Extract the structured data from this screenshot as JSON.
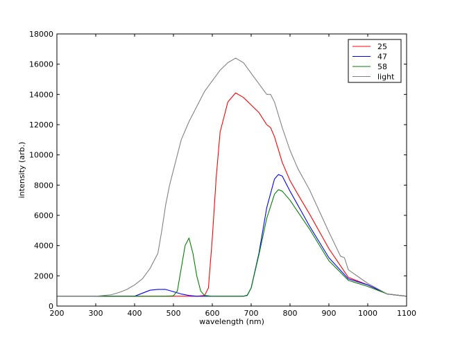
{
  "chart_data": {
    "type": "line",
    "title": "",
    "xlabel": "wavelength (nm)",
    "ylabel": "intensity (arb.)",
    "xlim": [
      200,
      1100
    ],
    "ylim": [
      0,
      18000
    ],
    "xticks": [
      "200",
      "300",
      "400",
      "500",
      "600",
      "700",
      "800",
      "900",
      "1000",
      "1100"
    ],
    "yticks": [
      "0",
      "2000",
      "4000",
      "6000",
      "8000",
      "10000",
      "12000",
      "14000",
      "16000",
      "18000"
    ],
    "grid": false,
    "legend_position": "top-right",
    "series": [
      {
        "name": "25",
        "color": "#ff0000",
        "x": [
          200,
          300,
          400,
          500,
          560,
          580,
          590,
          600,
          610,
          620,
          640,
          660,
          680,
          700,
          720,
          740,
          750,
          760,
          780,
          800,
          820,
          850,
          900,
          950,
          1000,
          1050,
          1100
        ],
        "y": [
          650,
          650,
          650,
          650,
          650,
          700,
          1200,
          4500,
          8500,
          11500,
          13500,
          14100,
          13800,
          13300,
          12800,
          12000,
          11800,
          11200,
          9500,
          8300,
          7400,
          6100,
          3800,
          1900,
          1400,
          800,
          650
        ]
      },
      {
        "name": "47",
        "color": "#0000ff",
        "x": [
          200,
          300,
          400,
          420,
          440,
          460,
          480,
          500,
          520,
          540,
          560,
          600,
          650,
          680,
          690,
          700,
          720,
          740,
          760,
          770,
          780,
          800,
          850,
          900,
          950,
          1000,
          1050,
          1100
        ],
        "y": [
          650,
          650,
          650,
          850,
          1050,
          1100,
          1100,
          950,
          800,
          700,
          650,
          650,
          650,
          650,
          720,
          1200,
          3500,
          6500,
          8400,
          8700,
          8600,
          7600,
          5300,
          3200,
          1800,
          1400,
          800,
          650
        ]
      },
      {
        "name": "58",
        "color": "#008000",
        "x": [
          200,
          300,
          400,
          480,
          500,
          510,
          520,
          530,
          540,
          550,
          560,
          570,
          580,
          600,
          650,
          680,
          690,
          700,
          720,
          740,
          760,
          770,
          780,
          800,
          850,
          900,
          950,
          1000,
          1050,
          1100
        ],
        "y": [
          650,
          650,
          650,
          650,
          680,
          1000,
          2500,
          4000,
          4500,
          3500,
          2000,
          1000,
          700,
          650,
          650,
          650,
          700,
          1200,
          3400,
          5800,
          7400,
          7700,
          7600,
          7000,
          5100,
          3000,
          1700,
          1300,
          800,
          650
        ]
      },
      {
        "name": "light",
        "color": "#808080",
        "x": [
          200,
          300,
          340,
          360,
          380,
          400,
          420,
          440,
          460,
          470,
          480,
          490,
          500,
          520,
          540,
          560,
          580,
          600,
          620,
          640,
          660,
          680,
          700,
          720,
          740,
          750,
          760,
          780,
          800,
          820,
          850,
          900,
          930,
          940,
          950,
          1000,
          1050,
          1100
        ],
        "y": [
          650,
          650,
          750,
          900,
          1100,
          1400,
          1800,
          2500,
          3500,
          5000,
          6700,
          8000,
          9000,
          11000,
          12200,
          13200,
          14200,
          14900,
          15600,
          16100,
          16400,
          16100,
          15400,
          14700,
          14000,
          14000,
          13500,
          11800,
          10300,
          9100,
          7700,
          4900,
          3300,
          3200,
          2400,
          1500,
          800,
          650
        ]
      }
    ]
  }
}
